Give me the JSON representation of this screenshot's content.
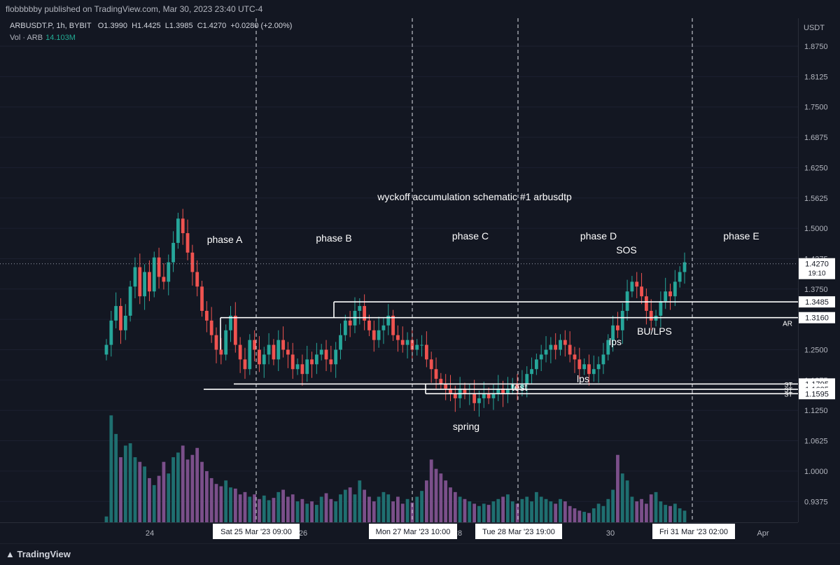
{
  "header": {
    "publisher_line": "flobbbbby published on TradingView.com, Mar 30, 2023 23:40 UTC-4"
  },
  "legend": {
    "symbol": "ARBUSDT.P, 1h, BYBIT",
    "open": "O1.3990",
    "high": "H1.4425",
    "low": "L1.3985",
    "close": "C1.4270",
    "change": "+0.0280 (+2.00%)",
    "volume_label": "Vol · ARB",
    "volume_value": "14.103M"
  },
  "currency_label": "USDT",
  "footer": {
    "logo": "TradingView"
  },
  "colors": {
    "background": "#131722",
    "up": "#26a69a",
    "down": "#ef5350",
    "vol_up": "#1f6f70",
    "vol_down": "#7b4f8a",
    "line": "#ffffff"
  },
  "chart_data": {
    "type": "candlestick",
    "title": "wyckoff accumulation schematic #1 arbusdtp",
    "price_ticks": [
      "1.8750",
      "1.8125",
      "1.7500",
      "1.6875",
      "1.6250",
      "1.5625",
      "1.5000",
      "1.4375",
      "1.3750",
      "1.3125",
      "1.2500",
      "1.1875",
      "1.1250",
      "1.0625",
      "1.0000",
      "0.9375"
    ],
    "ylim": [
      0.93,
      1.93
    ],
    "x_ticks": [
      "24",
      "26",
      "28",
      "30",
      "Apr"
    ],
    "x_marker_labels": [
      "Sat 25 Mar '23   09:00",
      "Mon 27 Mar '23   10:00",
      "Tue 28 Mar '23   19:00",
      "Fri 31 Mar '23   02:00"
    ],
    "current_price": {
      "value": "1.4270",
      "countdown": "19:10"
    },
    "levels": [
      {
        "value": 1.3485,
        "label": "1.3485"
      },
      {
        "value": 1.316,
        "label": "1.3160",
        "tag": "AR"
      },
      {
        "value": 1.1795,
        "label": "1.1795",
        "tag": "ST"
      },
      {
        "value": 1.1685,
        "label": "1.1685",
        "tag": "ST"
      },
      {
        "value": 1.1595,
        "label": "1.1595",
        "tag": "ST"
      }
    ],
    "phases": [
      "phase A",
      "phase B",
      "phase C",
      "phase D",
      "phase E"
    ],
    "annotations": [
      "SOS",
      "BU/LPS",
      "lps",
      "lps",
      "test",
      "spring"
    ],
    "close_series": [
      1.26,
      1.31,
      1.34,
      1.29,
      1.32,
      1.38,
      1.42,
      1.36,
      1.41,
      1.37,
      1.44,
      1.4,
      1.39,
      1.43,
      1.47,
      1.52,
      1.49,
      1.45,
      1.41,
      1.38,
      1.33,
      1.31,
      1.28,
      1.25,
      1.24,
      1.29,
      1.32,
      1.26,
      1.23,
      1.21,
      1.27,
      1.25,
      1.22,
      1.24,
      1.26,
      1.23,
      1.27,
      1.25,
      1.24,
      1.21,
      1.22,
      1.2,
      1.23,
      1.22,
      1.24,
      1.25,
      1.23,
      1.22,
      1.25,
      1.28,
      1.31,
      1.3,
      1.33,
      1.34,
      1.31,
      1.29,
      1.27,
      1.29,
      1.3,
      1.32,
      1.28,
      1.27,
      1.26,
      1.27,
      1.25,
      1.26,
      1.26,
      1.23,
      1.21,
      1.19,
      1.18,
      1.17,
      1.16,
      1.15,
      1.17,
      1.16,
      1.16,
      1.14,
      1.15,
      1.16,
      1.15,
      1.16,
      1.17,
      1.16,
      1.17,
      1.18,
      1.17,
      1.18,
      1.2,
      1.21,
      1.23,
      1.24,
      1.25,
      1.26,
      1.25,
      1.27,
      1.26,
      1.24,
      1.23,
      1.21,
      1.22,
      1.2,
      1.21,
      1.22,
      1.24,
      1.27,
      1.3,
      1.29,
      1.33,
      1.37,
      1.39,
      1.38,
      1.36,
      1.33,
      1.31,
      1.32,
      1.35,
      1.37,
      1.36,
      1.39,
      1.41,
      1.43
    ],
    "volume_series": [
      5,
      92,
      76,
      56,
      66,
      68,
      56,
      52,
      48,
      38,
      32,
      40,
      52,
      42,
      56,
      60,
      66,
      54,
      58,
      64,
      52,
      44,
      38,
      33,
      31,
      36,
      30,
      29,
      24,
      26,
      22,
      24,
      20,
      23,
      19,
      21,
      26,
      28,
      22,
      24,
      18,
      20,
      16,
      18,
      15,
      22,
      25,
      20,
      18,
      24,
      28,
      30,
      24,
      36,
      28,
      22,
      18,
      22,
      26,
      24,
      18,
      22,
      16,
      20,
      17,
      22,
      27,
      36,
      54,
      46,
      42,
      36,
      30,
      26,
      22,
      20,
      18,
      16,
      14,
      16,
      15,
      18,
      20,
      22,
      24,
      18,
      16,
      20,
      22,
      18,
      26,
      22,
      20,
      18,
      16,
      20,
      18,
      14,
      12,
      10,
      9,
      8,
      12,
      16,
      14,
      20,
      28,
      58,
      42,
      36,
      22,
      18,
      20,
      16,
      24,
      26,
      18,
      15,
      14,
      16,
      12,
      10
    ]
  }
}
